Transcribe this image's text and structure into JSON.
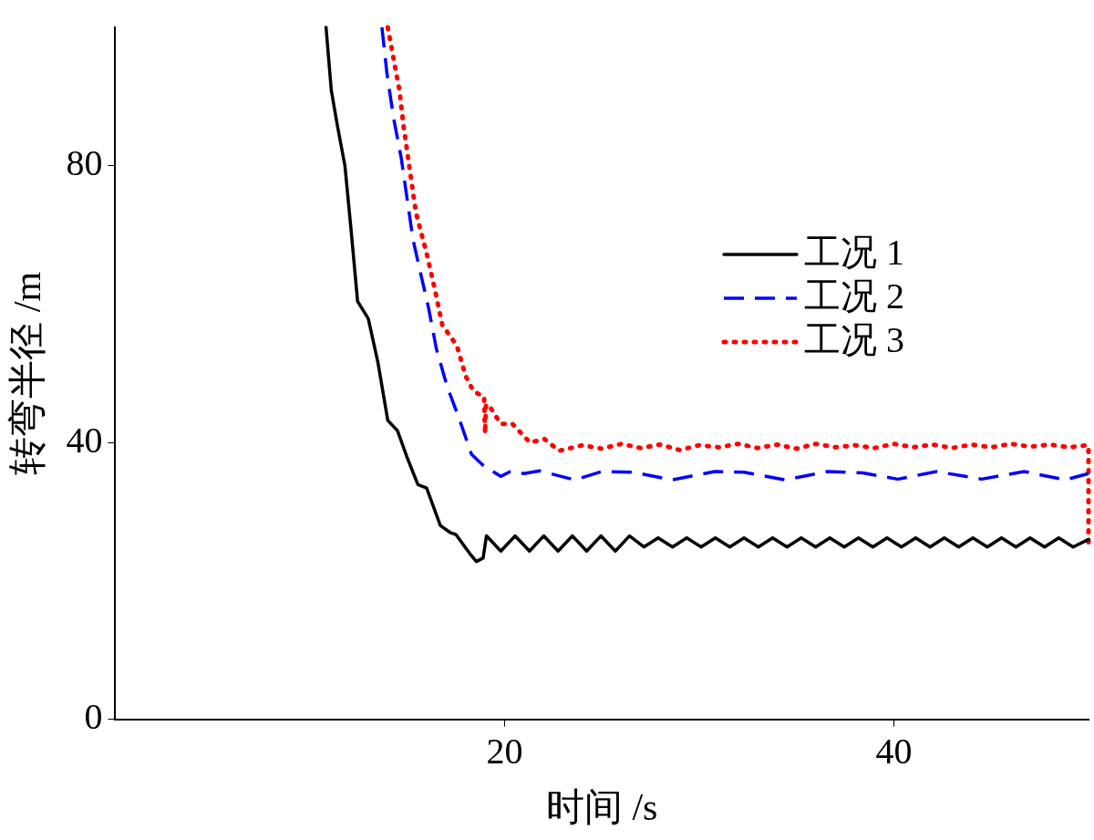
{
  "chart_data": {
    "type": "line",
    "xlabel": "时间 /s",
    "ylabel": "转弯半径 /m",
    "xlim": [
      0,
      50
    ],
    "xticks": [
      20,
      40
    ],
    "ylim": [
      0,
      100
    ],
    "yticks": [
      0,
      40,
      80
    ],
    "legend": "top right",
    "marker": "none",
    "series": [
      {
        "name": "工况 1",
        "color": "#000000",
        "line_style": "solid",
        "x": [
          10.83,
          11.1,
          11.4,
          11.8,
          12.1,
          12.45,
          13.0,
          13.5,
          14.0,
          14.5,
          15.0,
          15.55,
          16.0,
          16.7,
          17.2,
          17.5,
          18.2,
          18.55,
          18.9,
          19.07,
          19.81,
          20.54,
          21.28,
          22.01,
          22.75,
          23.48,
          24.22,
          24.95,
          25.69,
          26.42,
          27.16,
          27.89,
          28.63,
          29.36,
          30.1,
          30.83,
          31.57,
          32.3,
          33.04,
          33.77,
          34.51,
          35.24,
          35.98,
          36.71,
          37.45,
          38.18,
          38.92,
          39.65,
          40.39,
          41.12,
          41.86,
          42.59,
          43.33,
          44.06,
          44.8,
          45.53,
          46.27,
          47.0,
          47.74,
          48.47,
          49.21,
          50
        ],
        "values": [
          100,
          90.9,
          86,
          80,
          71.2,
          60.4,
          57.9,
          51.5,
          43.2,
          41.7,
          37.8,
          33.9,
          33.4,
          28,
          27,
          26.7,
          24,
          22.8,
          23.3,
          26.5,
          24.3,
          26.5,
          24.3,
          26.5,
          24.3,
          26.5,
          24.3,
          26.5,
          24.3,
          26.5,
          24.9,
          26.2,
          24.9,
          26.2,
          24.9,
          26.2,
          24.9,
          26.2,
          24.9,
          26.2,
          24.9,
          26.2,
          24.9,
          26.2,
          24.9,
          26.2,
          24.9,
          26.2,
          24.9,
          26.2,
          24.9,
          26.2,
          24.9,
          26.2,
          24.9,
          26.2,
          24.9,
          26.2,
          24.9,
          26.2,
          24.9,
          26
        ]
      },
      {
        "name": "工况 2",
        "color": "#0000ff",
        "line_style": "dashed",
        "x": [
          13.7,
          13.96,
          14.3,
          14.7,
          15.0,
          15.3,
          15.66,
          16.1,
          16.5,
          17.05,
          17.7,
          18.3,
          18.86,
          19.8,
          20.3,
          21.0,
          21.8,
          23.6,
          25.0,
          26.6,
          28.6,
          30.8,
          32.3,
          34.4,
          36.6,
          38.4,
          40.2,
          42.2,
          44.5,
          46.7,
          48.8,
          50
        ],
        "values": [
          100,
          93.3,
          86.9,
          81,
          75.1,
          69.3,
          64.8,
          59.4,
          53.5,
          48.1,
          43.2,
          38.3,
          36.8,
          35.1,
          35.8,
          35.5,
          35.9,
          34.6,
          35.8,
          35.7,
          34.6,
          35.8,
          35.7,
          34.6,
          35.8,
          35.6,
          34.7,
          35.8,
          34.7,
          35.8,
          34.6,
          35.5
        ]
      },
      {
        "name": "工况 3",
        "color": "#ff0000",
        "line_style": "dotted",
        "x": [
          14.0,
          14.6,
          14.8,
          15.1,
          15.45,
          16.0,
          16.4,
          16.8,
          17.55,
          18.0,
          18.4,
          18.95,
          19.0,
          19.05,
          19.24,
          19.8,
          20.4,
          21.3,
          22.05,
          22.8,
          24,
          25,
          26,
          27,
          28,
          29,
          30,
          31,
          32,
          33,
          34,
          35,
          36,
          37,
          38,
          39,
          40,
          41,
          42,
          43,
          44,
          45,
          46,
          47,
          48,
          49,
          49.9,
          50,
          50
        ],
        "values": [
          100,
          90.9,
          86,
          80,
          73.2,
          67.3,
          62.4,
          57,
          54,
          49.6,
          47.4,
          46.6,
          41.3,
          45.5,
          45.2,
          42.7,
          42.7,
          40,
          40.5,
          38.8,
          39.6,
          39.1,
          39.8,
          39.2,
          39.7,
          38.9,
          39.6,
          39.3,
          39.8,
          39.2,
          39.7,
          39.1,
          39.8,
          39.3,
          39.6,
          39.2,
          39.8,
          39.3,
          39.7,
          39.2,
          39.7,
          39.3,
          39.8,
          39.4,
          39.7,
          39.3,
          39.6,
          39.5,
          24.7
        ]
      }
    ]
  }
}
